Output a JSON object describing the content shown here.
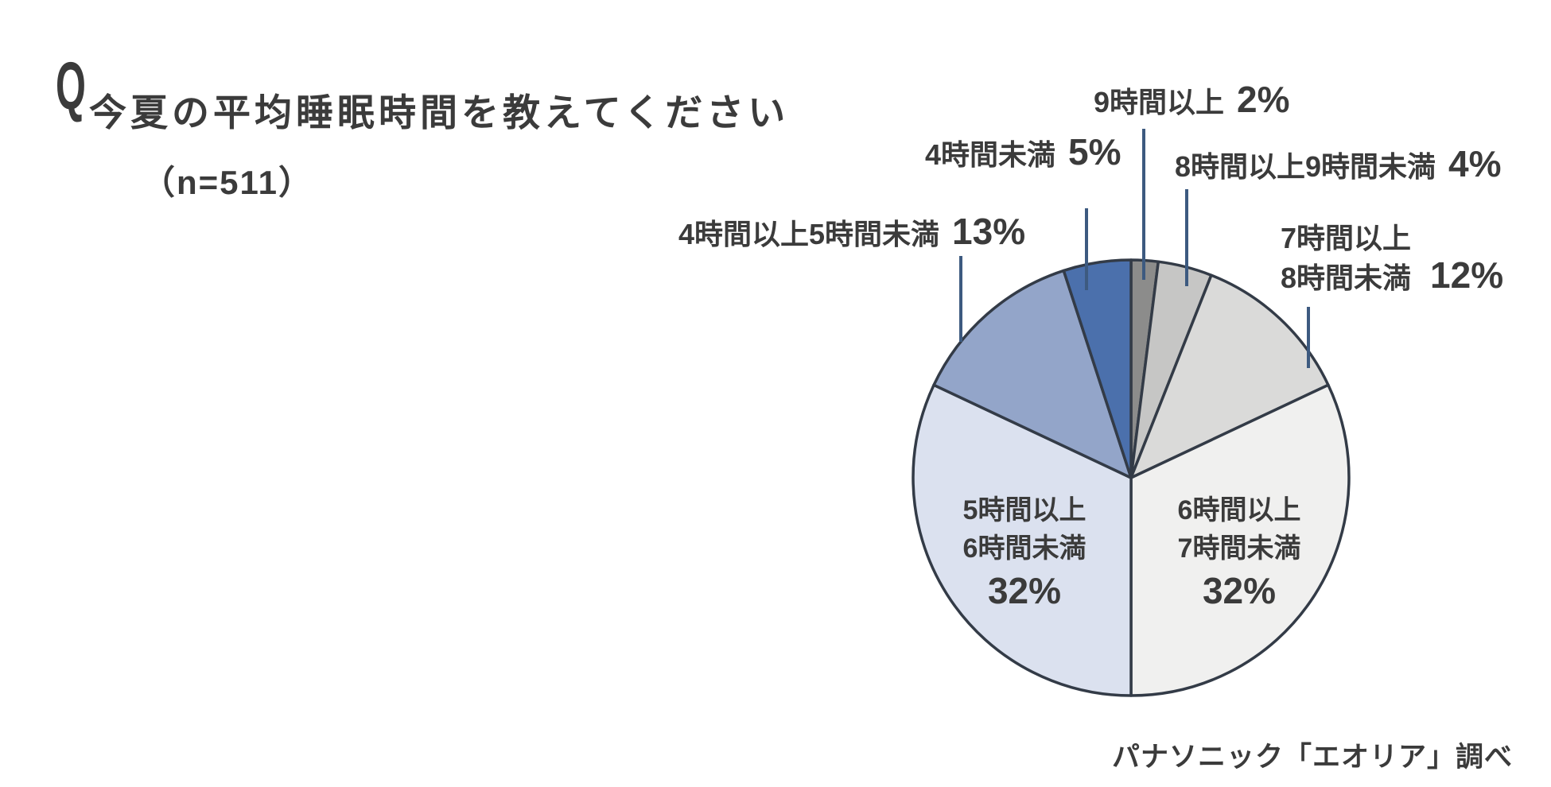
{
  "page": {
    "background": "#FFFFFF"
  },
  "header": {
    "q_mark": "Q",
    "title": "今夏の平均睡眠時間を教えてください",
    "sample_size": "（n=511）"
  },
  "source_credit": "パナソニック「エオリア」調べ",
  "chart_data": {
    "type": "pie",
    "title": "今夏の平均睡眠時間を教えてください",
    "sample_n": 511,
    "unit": "%",
    "start_angle_deg": 0,
    "direction": "clockwise",
    "stroke_color": "#333B47",
    "leader_line_color": "#3D5A80",
    "slices": [
      {
        "id": "9h-plus",
        "label": "9時間以上",
        "value": 2,
        "pct_label": "2%",
        "color": "#8C8C8B",
        "label_position": "outside"
      },
      {
        "id": "8-9h",
        "label": "8時間以上9時間未満",
        "value": 4,
        "pct_label": "4%",
        "color": "#C6C6C5",
        "label_position": "outside"
      },
      {
        "id": "7-8h",
        "label": "7時間以上8時間未満",
        "label_lines": [
          "7時間以上",
          "8時間未満"
        ],
        "value": 12,
        "pct_label": "12%",
        "color": "#DADAD9",
        "label_position": "outside"
      },
      {
        "id": "6-7h",
        "label": "6時間以上7時間未満",
        "label_lines": [
          "6時間以上",
          "7時間未満"
        ],
        "value": 32,
        "pct_label": "32%",
        "color": "#F0F0EF",
        "label_position": "inside"
      },
      {
        "id": "5-6h",
        "label": "5時間以上6時間未満",
        "label_lines": [
          "5時間以上",
          "6時間未満"
        ],
        "value": 32,
        "pct_label": "32%",
        "color": "#DBE1EF",
        "label_position": "inside"
      },
      {
        "id": "4-5h",
        "label": "4時間以上5時間未満",
        "value": 13,
        "pct_label": "13%",
        "color": "#93A5C9",
        "label_position": "outside"
      },
      {
        "id": "under-4h",
        "label": "4時間未満",
        "value": 5,
        "pct_label": "5%",
        "color": "#4B70AC",
        "label_position": "outside"
      }
    ]
  }
}
